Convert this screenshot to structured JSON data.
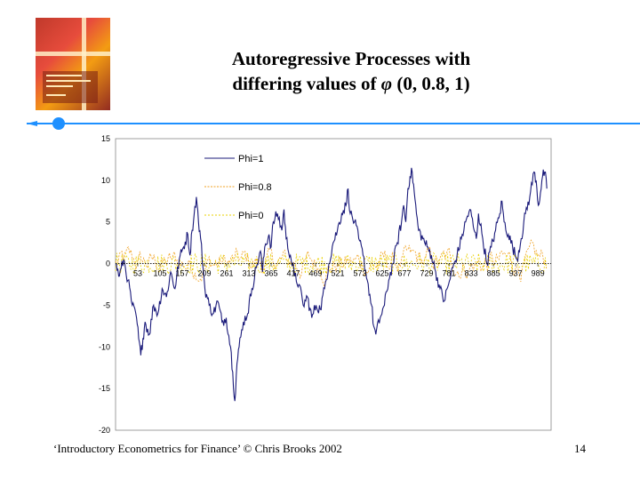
{
  "slide": {
    "title_line1": "Autoregressive Processes with",
    "title_line2_prefix": "differing values of ",
    "title_line2_symbol": "φ",
    "title_line2_suffix": " (0, 0.8, 1)",
    "footer": "‘Introductory Econometrics for Finance’ © Chris Brooks 2002",
    "page_number": "14"
  },
  "colors": {
    "phi1": "#1a1a7a",
    "phi08": "#f0a020",
    "phi0": "#e8d000",
    "accent": "#1e90ff"
  },
  "chart_data": {
    "type": "line",
    "ylim": [
      -20,
      15
    ],
    "yticks": [
      15,
      10,
      5,
      0,
      -5,
      -10,
      -15,
      -20
    ],
    "xlim": [
      1,
      1020
    ],
    "x_tick_labels": [
      "53",
      "105",
      "157",
      "209",
      "261",
      "313",
      "365",
      "417",
      "469",
      "521",
      "573",
      "625",
      "677",
      "729",
      "781",
      "833",
      "885",
      "937",
      "989"
    ],
    "legend_position": "upper-left",
    "series": [
      {
        "name": "Phi=1",
        "points": [
          [
            1,
            0
          ],
          [
            10,
            -1.5
          ],
          [
            20,
            0.5
          ],
          [
            30,
            -2
          ],
          [
            40,
            -5
          ],
          [
            50,
            -6.5
          ],
          [
            55,
            -9
          ],
          [
            60,
            -11
          ],
          [
            65,
            -9
          ],
          [
            70,
            -7
          ],
          [
            80,
            -8.5
          ],
          [
            90,
            -5
          ],
          [
            100,
            -6
          ],
          [
            110,
            -3
          ],
          [
            120,
            -4
          ],
          [
            130,
            -1
          ],
          [
            140,
            -3
          ],
          [
            150,
            0.5
          ],
          [
            160,
            2
          ],
          [
            170,
            3.5
          ],
          [
            175,
            1
          ],
          [
            180,
            4
          ],
          [
            185,
            6
          ],
          [
            190,
            8
          ],
          [
            195,
            5
          ],
          [
            200,
            3
          ],
          [
            210,
            -3
          ],
          [
            220,
            -5
          ],
          [
            230,
            -6
          ],
          [
            240,
            -4.5
          ],
          [
            250,
            -7
          ],
          [
            260,
            -6.5
          ],
          [
            270,
            -10
          ],
          [
            275,
            -13
          ],
          [
            280,
            -16.5
          ],
          [
            285,
            -12
          ],
          [
            290,
            -10
          ],
          [
            300,
            -7
          ],
          [
            310,
            -6
          ],
          [
            320,
            -3
          ],
          [
            330,
            -0.5
          ],
          [
            340,
            1.5
          ],
          [
            345,
            -1
          ],
          [
            350,
            2
          ],
          [
            360,
            3.5
          ],
          [
            365,
            2
          ],
          [
            370,
            5
          ],
          [
            380,
            6
          ],
          [
            390,
            4
          ],
          [
            395,
            6.5
          ],
          [
            400,
            3
          ],
          [
            410,
            1
          ],
          [
            420,
            -1.5
          ],
          [
            430,
            -2.5
          ],
          [
            440,
            -5
          ],
          [
            450,
            -4
          ],
          [
            460,
            -6.5
          ],
          [
            470,
            -5
          ],
          [
            480,
            -5.5
          ],
          [
            490,
            -3
          ],
          [
            500,
            0
          ],
          [
            510,
            2.5
          ],
          [
            520,
            4
          ],
          [
            530,
            6
          ],
          [
            540,
            7
          ],
          [
            545,
            9
          ],
          [
            550,
            6
          ],
          [
            560,
            5
          ],
          [
            570,
            3
          ],
          [
            580,
            1
          ],
          [
            590,
            -2
          ],
          [
            600,
            -5
          ],
          [
            605,
            -7.5
          ],
          [
            610,
            -8.5
          ],
          [
            620,
            -6.5
          ],
          [
            630,
            -5
          ],
          [
            640,
            -2
          ],
          [
            650,
            0
          ],
          [
            660,
            2.5
          ],
          [
            670,
            5
          ],
          [
            675,
            7
          ],
          [
            680,
            5
          ],
          [
            685,
            9
          ],
          [
            690,
            10.5
          ],
          [
            695,
            11
          ],
          [
            700,
            8.5
          ],
          [
            705,
            6
          ],
          [
            710,
            4
          ],
          [
            720,
            3
          ],
          [
            730,
            2
          ],
          [
            740,
            1
          ],
          [
            750,
            -1
          ],
          [
            760,
            -3
          ],
          [
            770,
            -4.5
          ],
          [
            780,
            -2.5
          ],
          [
            790,
            -0.5
          ],
          [
            800,
            1
          ],
          [
            810,
            3
          ],
          [
            820,
            5
          ],
          [
            830,
            6.5
          ],
          [
            840,
            4
          ],
          [
            845,
            3
          ],
          [
            850,
            6
          ],
          [
            860,
            3
          ],
          [
            870,
            0
          ],
          [
            880,
            2
          ],
          [
            890,
            4
          ],
          [
            900,
            6
          ],
          [
            905,
            7.5
          ],
          [
            910,
            5
          ],
          [
            920,
            3.5
          ],
          [
            930,
            2
          ],
          [
            940,
            0.5
          ],
          [
            950,
            3
          ],
          [
            960,
            6
          ],
          [
            970,
            8
          ],
          [
            980,
            11
          ],
          [
            985,
            10
          ],
          [
            990,
            7
          ],
          [
            995,
            8.5
          ],
          [
            1000,
            10.5
          ],
          [
            1005,
            11
          ],
          [
            1010,
            9
          ]
        ]
      },
      {
        "name": "Phi=0.8",
        "center": 0,
        "amplitude": 2.2
      },
      {
        "name": "Phi=0",
        "center": 0,
        "amplitude": 1.3
      }
    ]
  }
}
